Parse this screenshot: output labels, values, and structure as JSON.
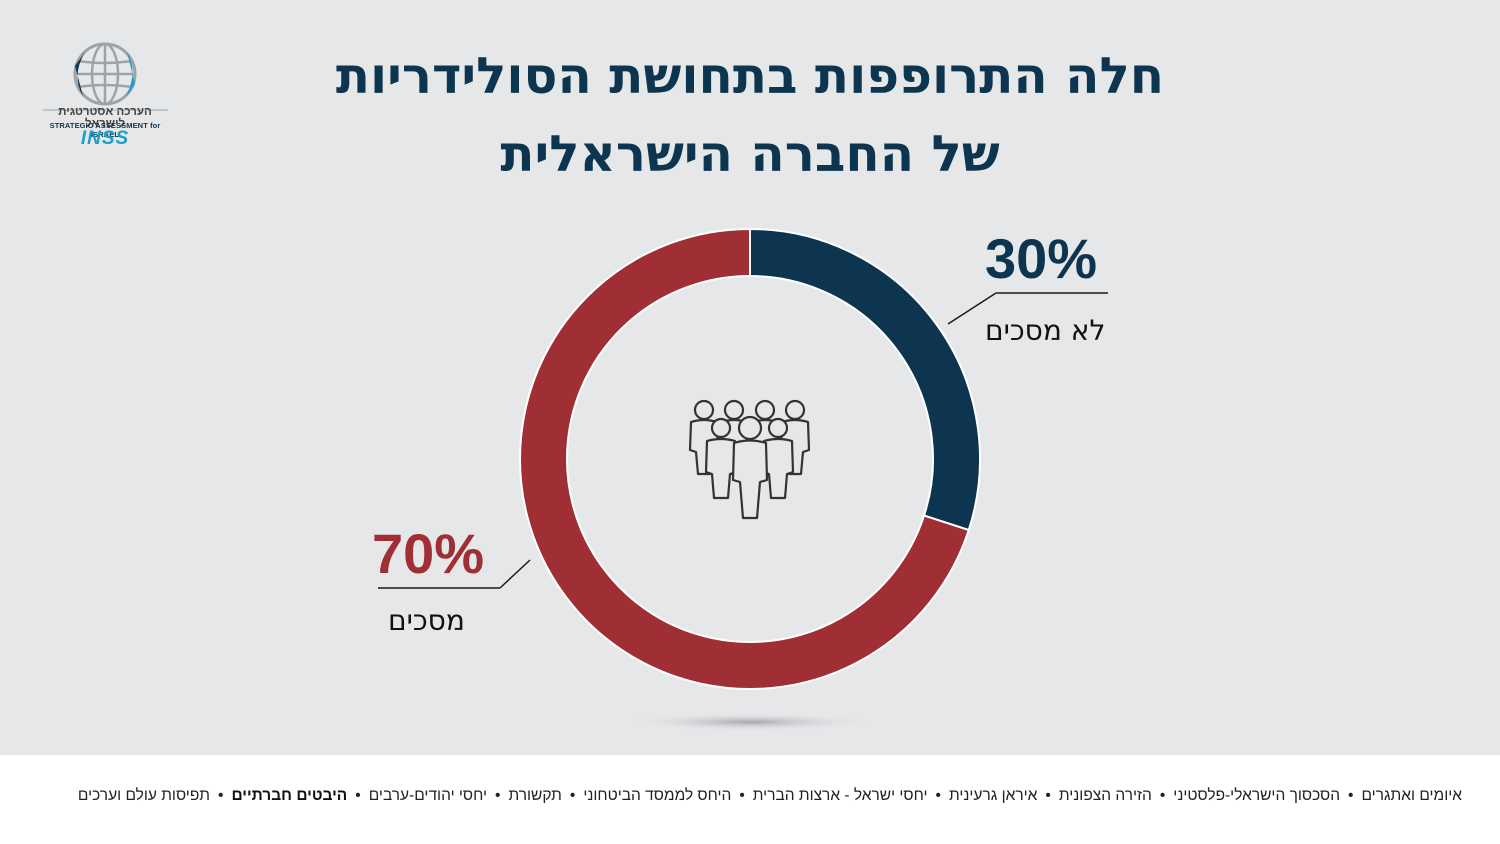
{
  "header": {
    "title_line1": "חלה התרופפות בתחושת הסולידריות",
    "title_line2": "של החברה הישראלית"
  },
  "logo": {
    "hebrew_text": "הערכה אסטרטגית לישראל",
    "english_text": "STRATEGIC ASSESSMENT for ISRAEL",
    "brand": "INSS",
    "icon": "globe-icon"
  },
  "colors": {
    "title": "#0d3550",
    "agree": "#a02e35",
    "disagree": "#0d3550",
    "background": "#e6e7e9"
  },
  "center_icon": "people-group-icon",
  "chart_data": {
    "type": "pie",
    "donut": true,
    "categories": [
      "מסכים",
      "לא מסכים"
    ],
    "values": [
      70,
      30
    ],
    "labels": [
      "70%",
      "30%"
    ],
    "colors": [
      "#a02e35",
      "#0d3550"
    ]
  },
  "footer": {
    "nav": [
      {
        "label": "איומים ואתגרים",
        "active": false
      },
      {
        "label": "הסכסוך הישראלי-פלסטיני",
        "active": false
      },
      {
        "label": "הזירה הצפונית",
        "active": false
      },
      {
        "label": "איראן גרעינית",
        "active": false
      },
      {
        "label": "יחסי ישראל - ארצות הברית",
        "active": false
      },
      {
        "label": "היחס לממסד הביטחוני",
        "active": false
      },
      {
        "label": "תקשורת",
        "active": false
      },
      {
        "label": "יחסי יהודים-ערבים",
        "active": false
      },
      {
        "label": "היבטים חברתיים",
        "active": true
      },
      {
        "label": "תפיסות עולם וערכים",
        "active": false
      }
    ],
    "separator": "•"
  }
}
